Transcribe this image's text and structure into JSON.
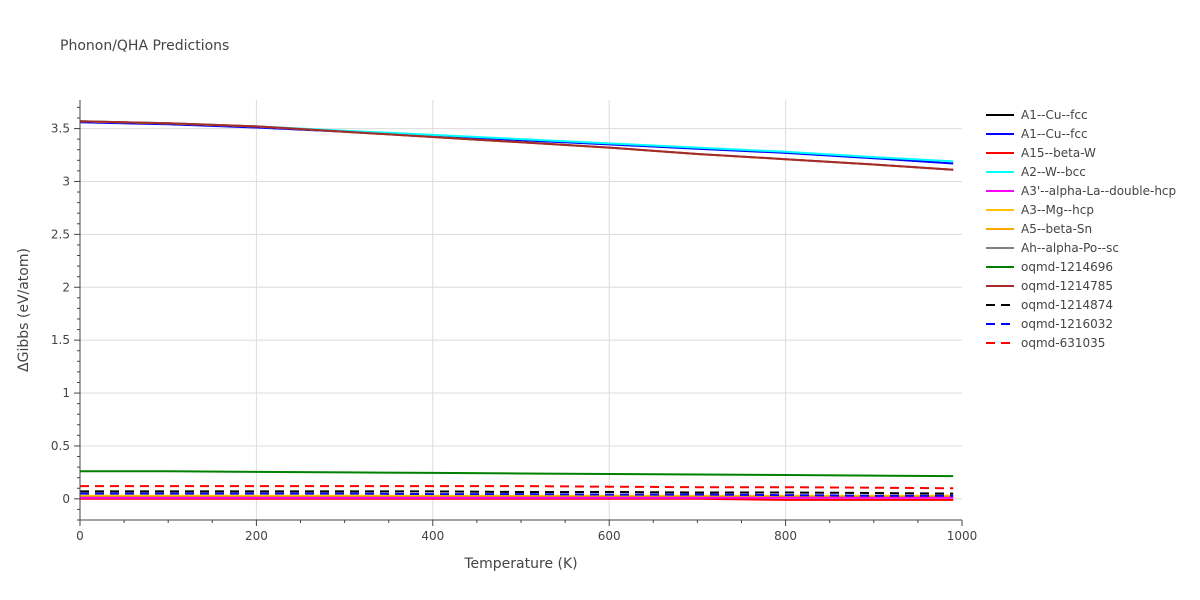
{
  "chart_data": {
    "type": "line",
    "title": "Phonon/QHA Predictions",
    "xlabel": "Temperature (K)",
    "ylabel": "ΔGibbs (eV/atom)",
    "xlim": [
      0,
      1000
    ],
    "ylim": [
      -0.2,
      3.77
    ],
    "grid": true,
    "legend_position": "right",
    "x_ticks": [
      "0",
      "200",
      "400",
      "600",
      "800",
      "1000"
    ],
    "y_ticks": [
      "0",
      "0.5",
      "1",
      "1.5",
      "2",
      "2.5",
      "3",
      "3.5"
    ],
    "x_tick_values": [
      0,
      200,
      400,
      600,
      800,
      1000
    ],
    "y_tick_values": [
      0,
      0.5,
      1,
      1.5,
      2,
      2.5,
      3,
      3.5
    ],
    "x": [
      0,
      100,
      200,
      300,
      400,
      500,
      600,
      700,
      800,
      900,
      990
    ],
    "series": [
      {
        "name": "A1--Cu--fcc",
        "color": "#000000",
        "dash": "solid",
        "values": [
          0.02,
          0.02,
          0.02,
          0.02,
          0.02,
          0.02,
          0.02,
          0.02,
          0.02,
          0.02,
          0.02
        ]
      },
      {
        "name": "A1--Cu--fcc",
        "color": "#0000ff",
        "dash": "solid",
        "values": [
          3.56,
          3.54,
          3.51,
          3.47,
          3.43,
          3.39,
          3.35,
          3.31,
          3.27,
          3.22,
          3.17
        ]
      },
      {
        "name": "A15--beta-W",
        "color": "#ff0000",
        "dash": "solid",
        "values": [
          0.0,
          0.0,
          0.0,
          0.0,
          0.0,
          0.0,
          0.0,
          0.0,
          -0.01,
          -0.01,
          -0.01
        ]
      },
      {
        "name": "A2--W--bcc",
        "color": "#00ffff",
        "dash": "solid",
        "values": [
          3.57,
          3.55,
          3.52,
          3.48,
          3.44,
          3.4,
          3.36,
          3.32,
          3.28,
          3.23,
          3.19
        ]
      },
      {
        "name": "A3'--alpha-La--double-hcp",
        "color": "#ff00ff",
        "dash": "solid",
        "values": [
          0.01,
          0.01,
          0.01,
          0.01,
          0.01,
          0.01,
          0.01,
          0.01,
          0.01,
          0.01,
          0.01
        ]
      },
      {
        "name": "A3--Mg--hcp",
        "color": "#ffc000",
        "dash": "solid",
        "values": [
          0.03,
          0.03,
          0.03,
          0.03,
          0.03,
          0.03,
          0.03,
          0.03,
          0.03,
          0.03,
          0.03
        ]
      },
      {
        "name": "A5--beta-Sn",
        "color": "#ffa500",
        "dash": "solid",
        "values": [
          3.57,
          3.55,
          3.52,
          3.47,
          3.42,
          3.37,
          3.32,
          3.26,
          3.21,
          3.16,
          3.11
        ]
      },
      {
        "name": "Ah--alpha-Po--sc",
        "color": "#808080",
        "dash": "solid",
        "values": [
          3.57,
          3.55,
          3.52,
          3.47,
          3.42,
          3.37,
          3.32,
          3.26,
          3.21,
          3.16,
          3.11
        ]
      },
      {
        "name": "oqmd-1214696",
        "color": "#008000",
        "dash": "solid",
        "values": [
          0.26,
          0.26,
          0.255,
          0.25,
          0.245,
          0.24,
          0.235,
          0.23,
          0.225,
          0.22,
          0.215
        ]
      },
      {
        "name": "oqmd-1214785",
        "color": "#a52a2a",
        "dash": "solid",
        "values": [
          3.57,
          3.55,
          3.52,
          3.47,
          3.42,
          3.37,
          3.32,
          3.26,
          3.21,
          3.16,
          3.11
        ]
      },
      {
        "name": "oqmd-1214874",
        "color": "#000000",
        "dash": "dash",
        "values": [
          0.07,
          0.07,
          0.07,
          0.07,
          0.07,
          0.065,
          0.065,
          0.06,
          0.06,
          0.055,
          0.05
        ]
      },
      {
        "name": "oqmd-1216032",
        "color": "#0000ff",
        "dash": "dash",
        "values": [
          0.05,
          0.05,
          0.05,
          0.05,
          0.045,
          0.045,
          0.04,
          0.04,
          0.035,
          0.03,
          0.03
        ]
      },
      {
        "name": "oqmd-631035",
        "color": "#ff0000",
        "dash": "dash",
        "values": [
          0.12,
          0.12,
          0.12,
          0.12,
          0.12,
          0.12,
          0.115,
          0.11,
          0.11,
          0.105,
          0.1
        ]
      }
    ]
  }
}
